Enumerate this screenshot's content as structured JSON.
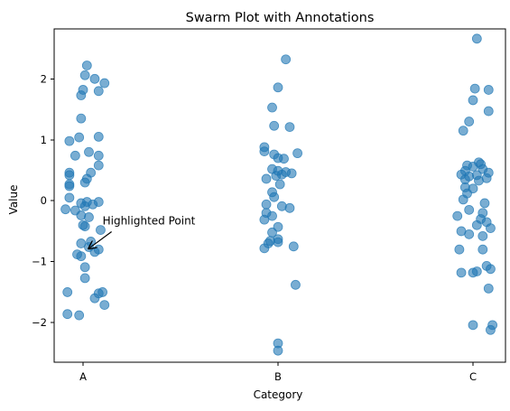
{
  "chart_data": {
    "type": "scatter",
    "title": "Swarm Plot with Annotations",
    "xlabel": "Category",
    "ylabel": "Value",
    "categories": [
      "A",
      "B",
      "C"
    ],
    "ylim": [
      -2.65,
      2.82
    ],
    "yticks": [
      -2,
      -1,
      0,
      1,
      2
    ],
    "ytick_labels": [
      "−2",
      "−1",
      "0",
      "1",
      "2"
    ],
    "grid": false,
    "legend": "none",
    "marker_color": "#1f77b4",
    "marker_alpha": 0.6,
    "points": [
      {
        "cat": "A",
        "jit": 0.02,
        "y": 2.22
      },
      {
        "cat": "A",
        "jit": 0.01,
        "y": 2.06
      },
      {
        "cat": "A",
        "jit": 0.06,
        "y": 2.0
      },
      {
        "cat": "A",
        "jit": 0.11,
        "y": 1.93
      },
      {
        "cat": "A",
        "jit": 0.0,
        "y": 1.82
      },
      {
        "cat": "A",
        "jit": 0.08,
        "y": 1.8
      },
      {
        "cat": "A",
        "jit": -0.01,
        "y": 1.73
      },
      {
        "cat": "A",
        "jit": -0.01,
        "y": 1.35
      },
      {
        "cat": "A",
        "jit": 0.08,
        "y": 1.05
      },
      {
        "cat": "A",
        "jit": -0.02,
        "y": 1.04
      },
      {
        "cat": "A",
        "jit": -0.07,
        "y": 0.98
      },
      {
        "cat": "A",
        "jit": 0.03,
        "y": 0.8
      },
      {
        "cat": "A",
        "jit": -0.04,
        "y": 0.74
      },
      {
        "cat": "A",
        "jit": 0.08,
        "y": 0.74
      },
      {
        "cat": "A",
        "jit": 0.08,
        "y": 0.58
      },
      {
        "cat": "A",
        "jit": 0.04,
        "y": 0.46
      },
      {
        "cat": "A",
        "jit": -0.07,
        "y": 0.46
      },
      {
        "cat": "A",
        "jit": -0.07,
        "y": 0.42
      },
      {
        "cat": "A",
        "jit": 0.02,
        "y": 0.36
      },
      {
        "cat": "A",
        "jit": 0.01,
        "y": 0.3
      },
      {
        "cat": "A",
        "jit": -0.07,
        "y": 0.27
      },
      {
        "cat": "A",
        "jit": -0.07,
        "y": 0.24
      },
      {
        "cat": "A",
        "jit": -0.07,
        "y": 0.05
      },
      {
        "cat": "A",
        "jit": 0.02,
        "y": -0.02
      },
      {
        "cat": "A",
        "jit": 0.08,
        "y": -0.02
      },
      {
        "cat": "A",
        "jit": -0.01,
        "y": -0.04
      },
      {
        "cat": "A",
        "jit": 0.05,
        "y": -0.06
      },
      {
        "cat": "A",
        "jit": 0.01,
        "y": -0.09
      },
      {
        "cat": "A",
        "jit": -0.09,
        "y": -0.14
      },
      {
        "cat": "A",
        "jit": -0.04,
        "y": -0.16
      },
      {
        "cat": "A",
        "jit": -0.01,
        "y": -0.24
      },
      {
        "cat": "A",
        "jit": 0.03,
        "y": -0.27
      },
      {
        "cat": "A",
        "jit": 0.0,
        "y": -0.4
      },
      {
        "cat": "A",
        "jit": 0.01,
        "y": -0.42
      },
      {
        "cat": "A",
        "jit": 0.09,
        "y": -0.48
      },
      {
        "cat": "A",
        "jit": 0.04,
        "y": -0.67
      },
      {
        "cat": "A",
        "jit": -0.01,
        "y": -0.7
      },
      {
        "cat": "A",
        "jit": 0.03,
        "y": -0.76
      },
      {
        "cat": "A",
        "jit": 0.08,
        "y": -0.8
      },
      {
        "cat": "A",
        "jit": 0.06,
        "y": -0.84
      },
      {
        "cat": "A",
        "jit": -0.03,
        "y": -0.88
      },
      {
        "cat": "A",
        "jit": -0.01,
        "y": -0.91
      },
      {
        "cat": "A",
        "jit": 0.01,
        "y": -1.09
      },
      {
        "cat": "A",
        "jit": 0.01,
        "y": -1.27
      },
      {
        "cat": "A",
        "jit": 0.1,
        "y": -1.5
      },
      {
        "cat": "A",
        "jit": -0.08,
        "y": -1.5
      },
      {
        "cat": "A",
        "jit": 0.08,
        "y": -1.52
      },
      {
        "cat": "A",
        "jit": 0.06,
        "y": -1.6
      },
      {
        "cat": "A",
        "jit": 0.11,
        "y": -1.71
      },
      {
        "cat": "A",
        "jit": -0.08,
        "y": -1.86
      },
      {
        "cat": "A",
        "jit": -0.02,
        "y": -1.88
      },
      {
        "cat": "B",
        "jit": 0.04,
        "y": 2.32
      },
      {
        "cat": "B",
        "jit": 0.0,
        "y": 1.86
      },
      {
        "cat": "B",
        "jit": -0.03,
        "y": 1.53
      },
      {
        "cat": "B",
        "jit": -0.02,
        "y": 1.23
      },
      {
        "cat": "B",
        "jit": 0.06,
        "y": 1.21
      },
      {
        "cat": "B",
        "jit": -0.07,
        "y": 0.88
      },
      {
        "cat": "B",
        "jit": -0.07,
        "y": 0.81
      },
      {
        "cat": "B",
        "jit": -0.02,
        "y": 0.76
      },
      {
        "cat": "B",
        "jit": 0.1,
        "y": 0.78
      },
      {
        "cat": "B",
        "jit": 0.0,
        "y": 0.7
      },
      {
        "cat": "B",
        "jit": 0.03,
        "y": 0.69
      },
      {
        "cat": "B",
        "jit": -0.03,
        "y": 0.52
      },
      {
        "cat": "B",
        "jit": 0.0,
        "y": 0.49
      },
      {
        "cat": "B",
        "jit": 0.04,
        "y": 0.47
      },
      {
        "cat": "B",
        "jit": 0.07,
        "y": 0.45
      },
      {
        "cat": "B",
        "jit": 0.02,
        "y": 0.43
      },
      {
        "cat": "B",
        "jit": -0.01,
        "y": 0.41
      },
      {
        "cat": "B",
        "jit": -0.06,
        "y": 0.36
      },
      {
        "cat": "B",
        "jit": 0.01,
        "y": 0.27
      },
      {
        "cat": "B",
        "jit": -0.03,
        "y": 0.14
      },
      {
        "cat": "B",
        "jit": -0.02,
        "y": 0.06
      },
      {
        "cat": "B",
        "jit": -0.06,
        "y": -0.06
      },
      {
        "cat": "B",
        "jit": 0.02,
        "y": -0.09
      },
      {
        "cat": "B",
        "jit": 0.06,
        "y": -0.12
      },
      {
        "cat": "B",
        "jit": -0.06,
        "y": -0.2
      },
      {
        "cat": "B",
        "jit": -0.03,
        "y": -0.25
      },
      {
        "cat": "B",
        "jit": -0.07,
        "y": -0.31
      },
      {
        "cat": "B",
        "jit": 0.0,
        "y": -0.43
      },
      {
        "cat": "B",
        "jit": -0.03,
        "y": -0.52
      },
      {
        "cat": "B",
        "jit": 0.0,
        "y": -0.63
      },
      {
        "cat": "B",
        "jit": -0.04,
        "y": -0.66
      },
      {
        "cat": "B",
        "jit": 0.0,
        "y": -0.68
      },
      {
        "cat": "B",
        "jit": -0.05,
        "y": -0.7
      },
      {
        "cat": "B",
        "jit": 0.08,
        "y": -0.75
      },
      {
        "cat": "B",
        "jit": -0.07,
        "y": -0.78
      },
      {
        "cat": "B",
        "jit": 0.09,
        "y": -1.38
      },
      {
        "cat": "B",
        "jit": 0.0,
        "y": -2.34
      },
      {
        "cat": "B",
        "jit": 0.0,
        "y": -2.46
      },
      {
        "cat": "C",
        "jit": 0.02,
        "y": 2.66
      },
      {
        "cat": "C",
        "jit": 0.01,
        "y": 1.84
      },
      {
        "cat": "C",
        "jit": 0.08,
        "y": 1.82
      },
      {
        "cat": "C",
        "jit": 0.0,
        "y": 1.65
      },
      {
        "cat": "C",
        "jit": 0.08,
        "y": 1.47
      },
      {
        "cat": "C",
        "jit": -0.02,
        "y": 1.3
      },
      {
        "cat": "C",
        "jit": -0.05,
        "y": 1.15
      },
      {
        "cat": "C",
        "jit": 0.03,
        "y": 0.63
      },
      {
        "cat": "C",
        "jit": 0.04,
        "y": 0.6
      },
      {
        "cat": "C",
        "jit": -0.03,
        "y": 0.58
      },
      {
        "cat": "C",
        "jit": 0.0,
        "y": 0.56
      },
      {
        "cat": "C",
        "jit": 0.05,
        "y": 0.52
      },
      {
        "cat": "C",
        "jit": -0.04,
        "y": 0.49
      },
      {
        "cat": "C",
        "jit": 0.08,
        "y": 0.46
      },
      {
        "cat": "C",
        "jit": -0.06,
        "y": 0.43
      },
      {
        "cat": "C",
        "jit": 0.02,
        "y": 0.42
      },
      {
        "cat": "C",
        "jit": -0.02,
        "y": 0.4
      },
      {
        "cat": "C",
        "jit": 0.07,
        "y": 0.37
      },
      {
        "cat": "C",
        "jit": -0.04,
        "y": 0.35
      },
      {
        "cat": "C",
        "jit": 0.03,
        "y": 0.33
      },
      {
        "cat": "C",
        "jit": -0.04,
        "y": 0.22
      },
      {
        "cat": "C",
        "jit": 0.0,
        "y": 0.2
      },
      {
        "cat": "C",
        "jit": -0.03,
        "y": 0.12
      },
      {
        "cat": "C",
        "jit": -0.05,
        "y": 0.02
      },
      {
        "cat": "C",
        "jit": 0.06,
        "y": -0.04
      },
      {
        "cat": "C",
        "jit": -0.02,
        "y": -0.15
      },
      {
        "cat": "C",
        "jit": 0.05,
        "y": -0.2
      },
      {
        "cat": "C",
        "jit": -0.08,
        "y": -0.25
      },
      {
        "cat": "C",
        "jit": 0.04,
        "y": -0.3
      },
      {
        "cat": "C",
        "jit": 0.07,
        "y": -0.35
      },
      {
        "cat": "C",
        "jit": 0.02,
        "y": -0.4
      },
      {
        "cat": "C",
        "jit": 0.09,
        "y": -0.45
      },
      {
        "cat": "C",
        "jit": -0.06,
        "y": -0.5
      },
      {
        "cat": "C",
        "jit": -0.02,
        "y": -0.55
      },
      {
        "cat": "C",
        "jit": 0.05,
        "y": -0.58
      },
      {
        "cat": "C",
        "jit": -0.07,
        "y": -0.8
      },
      {
        "cat": "C",
        "jit": 0.05,
        "y": -0.8
      },
      {
        "cat": "C",
        "jit": 0.07,
        "y": -1.07
      },
      {
        "cat": "C",
        "jit": 0.09,
        "y": -1.12
      },
      {
        "cat": "C",
        "jit": -0.06,
        "y": -1.18
      },
      {
        "cat": "C",
        "jit": 0.0,
        "y": -1.18
      },
      {
        "cat": "C",
        "jit": 0.02,
        "y": -1.16
      },
      {
        "cat": "C",
        "jit": 0.08,
        "y": -1.44
      },
      {
        "cat": "C",
        "jit": 0.0,
        "y": -2.04
      },
      {
        "cat": "C",
        "jit": 0.1,
        "y": -2.04
      },
      {
        "cat": "C",
        "jit": 0.09,
        "y": -2.12
      }
    ],
    "annotation": {
      "text": "Highlighted Point",
      "target": {
        "cat": "A",
        "jit": 0.02,
        "y": -0.8
      },
      "text_pos": {
        "cat": "A",
        "jit": 0.1,
        "y": -0.33
      }
    }
  }
}
